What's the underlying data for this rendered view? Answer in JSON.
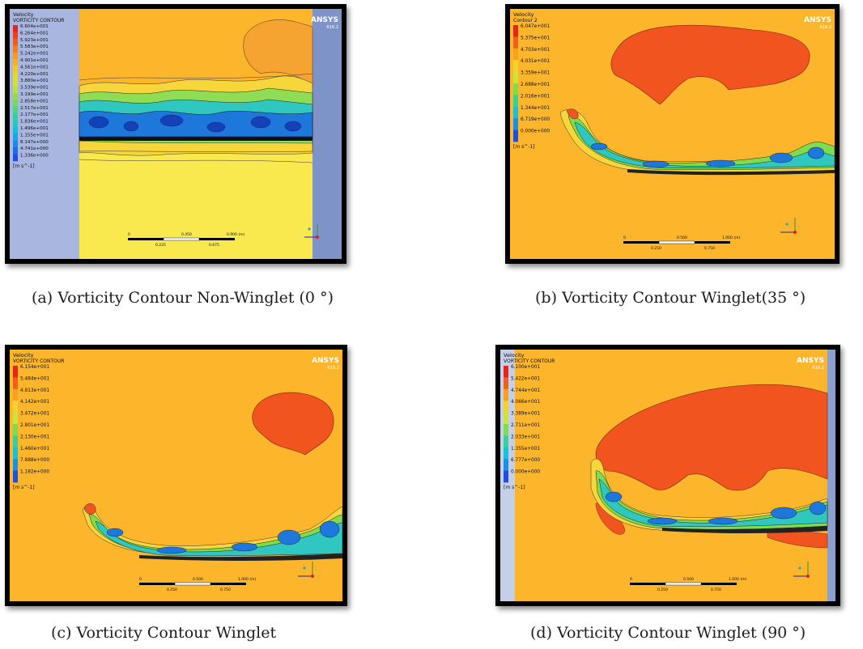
{
  "panels": [
    {
      "id": "a",
      "caption": "(a)  Vorticity Contour Non-Winglet (0 °)",
      "legend_title": "Velocity",
      "legend_subtitle": "VORTICITY CONTOUR",
      "brand": "ANSYS",
      "brand_version": "R16.2",
      "legend_values": [
        "6.604e+001",
        "6.264e+001",
        "5.923e+001",
        "5.583e+001",
        "5.242e+001",
        "4.901e+001",
        "4.561e+001",
        "4.220e+001",
        "3.880e+001",
        "3.539e+001",
        "3.199e+001",
        "2.858e+001",
        "2.517e+001",
        "2.177e+001",
        "1.836e+001",
        "1.496e+001",
        "1.155e+001",
        "8.147e+000",
        "4.741e+000",
        "1.336e+000"
      ],
      "units": "[m s^-1]",
      "scale_labels_top": [
        "0",
        "0.450",
        "0.900 (m)"
      ],
      "scale_labels_bottom": [
        "0.225",
        "0.675"
      ]
    },
    {
      "id": "b",
      "caption": "(b)  Vorticity Contour Winglet(35 °)",
      "legend_title": "Velocity",
      "legend_subtitle": "Contour 2",
      "brand": "ANSYS",
      "brand_version": "R16.2",
      "legend_values": [
        "6.047e+001",
        "5.375e+001",
        "4.703e+001",
        "4.031e+001",
        "3.359e+001",
        "2.688e+001",
        "2.016e+001",
        "1.344e+001",
        "6.719e+000",
        "0.000e+000"
      ],
      "units": "[m s^-1]",
      "scale_labels_top": [
        "0",
        "0.500",
        "1.000 (m)"
      ],
      "scale_labels_bottom": [
        "0.250",
        "0.750"
      ]
    },
    {
      "id": "c",
      "caption": "(c)  Vorticity Contour Winglet",
      "legend_title": "Velocity",
      "legend_subtitle": "VORTICITY CONTOUR",
      "brand": "ANSYS",
      "brand_version": "R16.2",
      "legend_values": [
        "6.154e+001",
        "5.484e+001",
        "4.813e+001",
        "4.142e+001",
        "3.472e+001",
        "2.801e+001",
        "2.130e+001",
        "1.460e+001",
        "7.888e+000",
        "1.182e+000"
      ],
      "units": "[m s^-1]",
      "scale_labels_top": [
        "0",
        "0.500",
        "1.000 (m)"
      ],
      "scale_labels_bottom": [
        "0.250",
        "0.750"
      ]
    },
    {
      "id": "d",
      "caption": "(d)  Vorticity Contour Winglet (90 °)",
      "legend_title": "Velocity",
      "legend_subtitle": "VORTICITY CONTOUR",
      "brand": "ANSYS",
      "brand_version": "R16.2",
      "legend_values": [
        "6.100e+001",
        "5.422e+001",
        "4.744e+001",
        "4.066e+001",
        "3.389e+001",
        "2.711e+001",
        "2.033e+001",
        "1.355e+001",
        "6.777e+000",
        "0.000e+000"
      ],
      "units": "[m s^-1]",
      "scale_labels_top": [
        "0",
        "0.500",
        "1.000 (m)"
      ],
      "scale_labels_bottom": [
        "0.250",
        "0.750"
      ]
    }
  ],
  "colors": {
    "field_orange": "#fdb52b",
    "field_yellow": "#f9e84e",
    "high_red": "#f2541f",
    "legend_ramp": [
      "#e8231b",
      "#f0601c",
      "#f7a21d",
      "#f3d22a",
      "#cbe53a",
      "#7fdc4d",
      "#35d39a",
      "#16c4d8",
      "#1a8fe8",
      "#1f4fe0"
    ]
  }
}
